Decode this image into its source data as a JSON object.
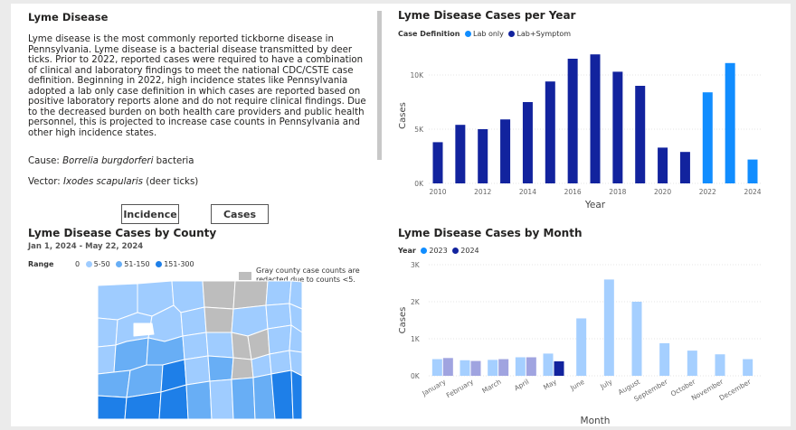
{
  "info": {
    "title": "Lyme Disease",
    "paragraph": "Lyme disease is the most commonly reported tickborne disease in Pennsylvania. Lyme disease is a bacterial disease transmitted by deer ticks. Prior to 2022, reported cases were required to have a combination of clinical and laboratory findings to meet the national CDC/CSTE case definition. Beginning in 2022, high incidence states like Pennsylvania adopted a lab only case definition in which cases are reported based on positive laboratory reports alone and do not require clinical findings. Due to the decreased burden on both health care providers and public health personnel, this is projected to increase case counts in Pennsylvania and other high incidence states.",
    "cause_label": "Cause: ",
    "cause_value": "Borrelia burgdorferi",
    "cause_suffix": " bacteria",
    "vector_label": "Vector: ",
    "vector_value": "Ixodes scapularis",
    "vector_suffix": " (deer ticks)"
  },
  "toggle": {
    "incidence_label": "Incidence",
    "cases_label": "Cases",
    "selected": "Cases"
  },
  "county_map": {
    "title": "Lyme Disease Cases by County",
    "date_range": "Jan 1, 2024 - May 22, 2024",
    "legend_title": "Range",
    "legend_items": [
      {
        "label": "0",
        "color": "#ffffff"
      },
      {
        "label": "5-50",
        "color": "#9fccff"
      },
      {
        "label": "51-150",
        "color": "#68aef5"
      },
      {
        "label": "151-300",
        "color": "#1e7fe8"
      }
    ],
    "gray_note": "Gray county case counts are redacted due to counts <5.",
    "gray_color": "#bdbdbd"
  },
  "colors": {
    "lab_only": "#118dff",
    "lab_symptom": "#12239e",
    "y2023": "#a5cfff",
    "y2024_light": "#a0a4e0",
    "y2024": "#12239e"
  },
  "chart_data": [
    {
      "type": "bar",
      "title": "Lyme Disease Cases per Year",
      "legend_title": "Case Definition",
      "xlabel": "Year",
      "ylabel": "Cases",
      "ylim": [
        0,
        12500
      ],
      "yticks": [
        0,
        5000,
        10000
      ],
      "ytick_labels": [
        "0K",
        "5K",
        "10K"
      ],
      "xticks": [
        2010,
        2012,
        2014,
        2016,
        2018,
        2020,
        2022,
        2024
      ],
      "series": [
        {
          "name": "Lab only",
          "x": [
            2022,
            2023,
            2024
          ],
          "values": [
            8400,
            11100,
            2200
          ]
        },
        {
          "name": "Lab+Symptom",
          "x": [
            2010,
            2011,
            2012,
            2013,
            2014,
            2015,
            2016,
            2017,
            2018,
            2019,
            2020,
            2021
          ],
          "values": [
            3800,
            5400,
            5000,
            5900,
            7500,
            9400,
            11500,
            11900,
            10300,
            9000,
            3300,
            2900
          ]
        }
      ]
    },
    {
      "type": "bar",
      "title": "Lyme Disease Cases by Month",
      "legend_title": "Year",
      "xlabel": "Month",
      "ylabel": "Cases",
      "ylim": [
        0,
        3000
      ],
      "yticks": [
        0,
        1000,
        2000,
        3000
      ],
      "ytick_labels": [
        "0K",
        "1K",
        "2K",
        "3K"
      ],
      "categories": [
        "January",
        "February",
        "March",
        "April",
        "May",
        "June",
        "July",
        "August",
        "September",
        "October",
        "November",
        "December"
      ],
      "series": [
        {
          "name": "2023",
          "values": [
            450,
            420,
            430,
            500,
            600,
            1550,
            2600,
            2000,
            880,
            680,
            580,
            450
          ]
        },
        {
          "name": "2024",
          "values": [
            480,
            400,
            450,
            500,
            390,
            null,
            null,
            null,
            null,
            null,
            null,
            null
          ]
        }
      ]
    }
  ]
}
